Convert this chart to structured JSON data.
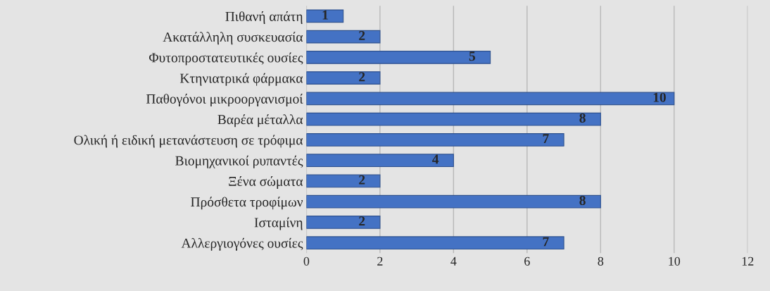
{
  "chart_data": {
    "type": "bar",
    "orientation": "horizontal",
    "categories": [
      "Πιθανή απάτη",
      "Ακατάλληλη συσκευασία",
      "Φυτοπροστατευτικές ουσίες",
      "Κτηνιατρικά φάρμακα",
      "Παθογόνοι μικροοργανισμοί",
      "Βαρέα μέταλλα",
      "Ολική ή ειδική μετανάστευση σε τρόφιμα",
      "Βιομηχανικοί ρυπαντές",
      "Ξένα σώματα",
      "Πρόσθετα τροφίμων",
      "Ισταμίνη",
      "Αλλεργιογόνες ουσίες"
    ],
    "values": [
      1,
      2,
      5,
      2,
      10,
      8,
      7,
      4,
      2,
      8,
      2,
      7
    ],
    "color": "#4472c4",
    "xlim": [
      0,
      12
    ],
    "xticks": [
      0,
      2,
      4,
      6,
      8,
      10,
      12
    ],
    "grid": "x",
    "data_labels": true
  }
}
